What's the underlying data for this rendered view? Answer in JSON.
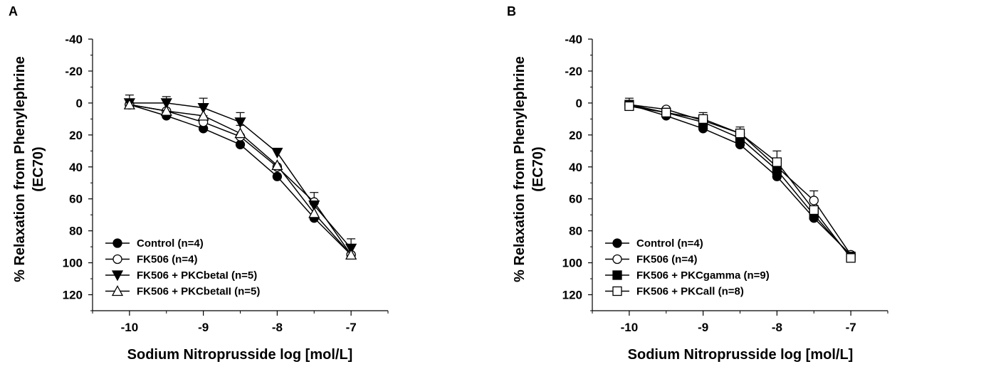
{
  "chart_data": [
    {
      "panel_label": "A",
      "type": "line",
      "xlabel": "Sodium Nitroprusside log [mol/L]",
      "ylabel": "% Relaxation from Phenylephrine (EC70)",
      "ylabel_lines": [
        "% Relaxation from Phenylephrine",
        "(EC70)"
      ],
      "xlim": [
        -10.5,
        -6.5
      ],
      "ylim": [
        -40,
        130
      ],
      "y_inverted": true,
      "x_ticks": [
        -10,
        -9,
        -8,
        -7
      ],
      "x_tick_labels": [
        "-10",
        "-9",
        "-8",
        "-7"
      ],
      "y_ticks": [
        -40,
        -20,
        0,
        20,
        40,
        60,
        80,
        100,
        120
      ],
      "y_tick_labels": [
        "-40",
        "-20",
        "0",
        "20",
        "40",
        "60",
        "80",
        "100",
        "120"
      ],
      "legend_position": "bottom-left",
      "x": [
        -10,
        -9.5,
        -9,
        -8.5,
        -8,
        -7.5,
        -7
      ],
      "series": [
        {
          "name": "Control (n=4)",
          "marker": "circle",
          "fill": "#000000",
          "values": [
            1,
            8,
            16,
            26,
            46,
            72,
            95
          ],
          "error": [
            0,
            0,
            0,
            0,
            0,
            0,
            0
          ]
        },
        {
          "name": "FK506 (n=4)",
          "marker": "circle",
          "fill": "#ffffff",
          "values": [
            1,
            5,
            12,
            21,
            40,
            62,
            95
          ],
          "error": [
            0,
            0,
            2,
            0,
            0,
            4,
            0
          ]
        },
        {
          "name": "FK506 + PKCbetaI (n=5)",
          "marker": "triangle-down",
          "fill": "#000000",
          "values": [
            0,
            0,
            3,
            12,
            31,
            64,
            91
          ],
          "error": [
            3,
            2,
            4,
            4,
            0,
            0,
            4
          ]
        },
        {
          "name": "FK506 + PKCbetaII (n=5)",
          "marker": "triangle-up",
          "fill": "#ffffff",
          "values": [
            1,
            5,
            8,
            19,
            39,
            69,
            95
          ],
          "error": [
            0,
            0,
            0,
            3,
            0,
            0,
            0
          ]
        }
      ]
    },
    {
      "panel_label": "B",
      "type": "line",
      "xlabel": "Sodium Nitroprusside log [mol/L]",
      "ylabel": "% Relaxation from Phenylephrine (EC70)",
      "ylabel_lines": [
        "% Relaxation from Phenylephrine",
        "(EC70)"
      ],
      "xlim": [
        -10.5,
        -6.5
      ],
      "ylim": [
        -40,
        130
      ],
      "y_inverted": true,
      "x_ticks": [
        -10,
        -9,
        -8,
        -7
      ],
      "x_tick_labels": [
        "-10",
        "-9",
        "-8",
        "-7"
      ],
      "y_ticks": [
        -40,
        -20,
        0,
        20,
        40,
        60,
        80,
        100,
        120
      ],
      "y_tick_labels": [
        "-40",
        "-20",
        "0",
        "20",
        "40",
        "60",
        "80",
        "100",
        "120"
      ],
      "legend_position": "bottom-left",
      "x": [
        -10,
        -9.5,
        -9,
        -8.5,
        -8,
        -7.5,
        -7
      ],
      "series": [
        {
          "name": "Control (n=4)",
          "marker": "circle",
          "fill": "#000000",
          "values": [
            1,
            8,
            16,
            26,
            46,
            72,
            95
          ],
          "error": [
            0,
            0,
            0,
            0,
            0,
            0,
            0
          ]
        },
        {
          "name": "FK506 (n=4)",
          "marker": "circle",
          "fill": "#ffffff",
          "values": [
            1,
            4,
            11,
            19,
            40,
            61,
            95
          ],
          "error": [
            0,
            0,
            0,
            0,
            0,
            4,
            0
          ]
        },
        {
          "name": "FK506 + PKCgamma (n=9)",
          "marker": "square",
          "fill": "#000000",
          "values": [
            1,
            6,
            12,
            22,
            42,
            70,
            96
          ],
          "error": [
            0,
            0,
            0,
            0,
            0,
            0,
            0
          ]
        },
        {
          "name": "FK506 + PKCall (n=8)",
          "marker": "square",
          "fill": "#ffffff",
          "values": [
            2,
            6,
            10,
            19,
            37,
            67,
            97
          ],
          "error": [
            3,
            0,
            2,
            2,
            5,
            0,
            0
          ]
        }
      ]
    }
  ]
}
